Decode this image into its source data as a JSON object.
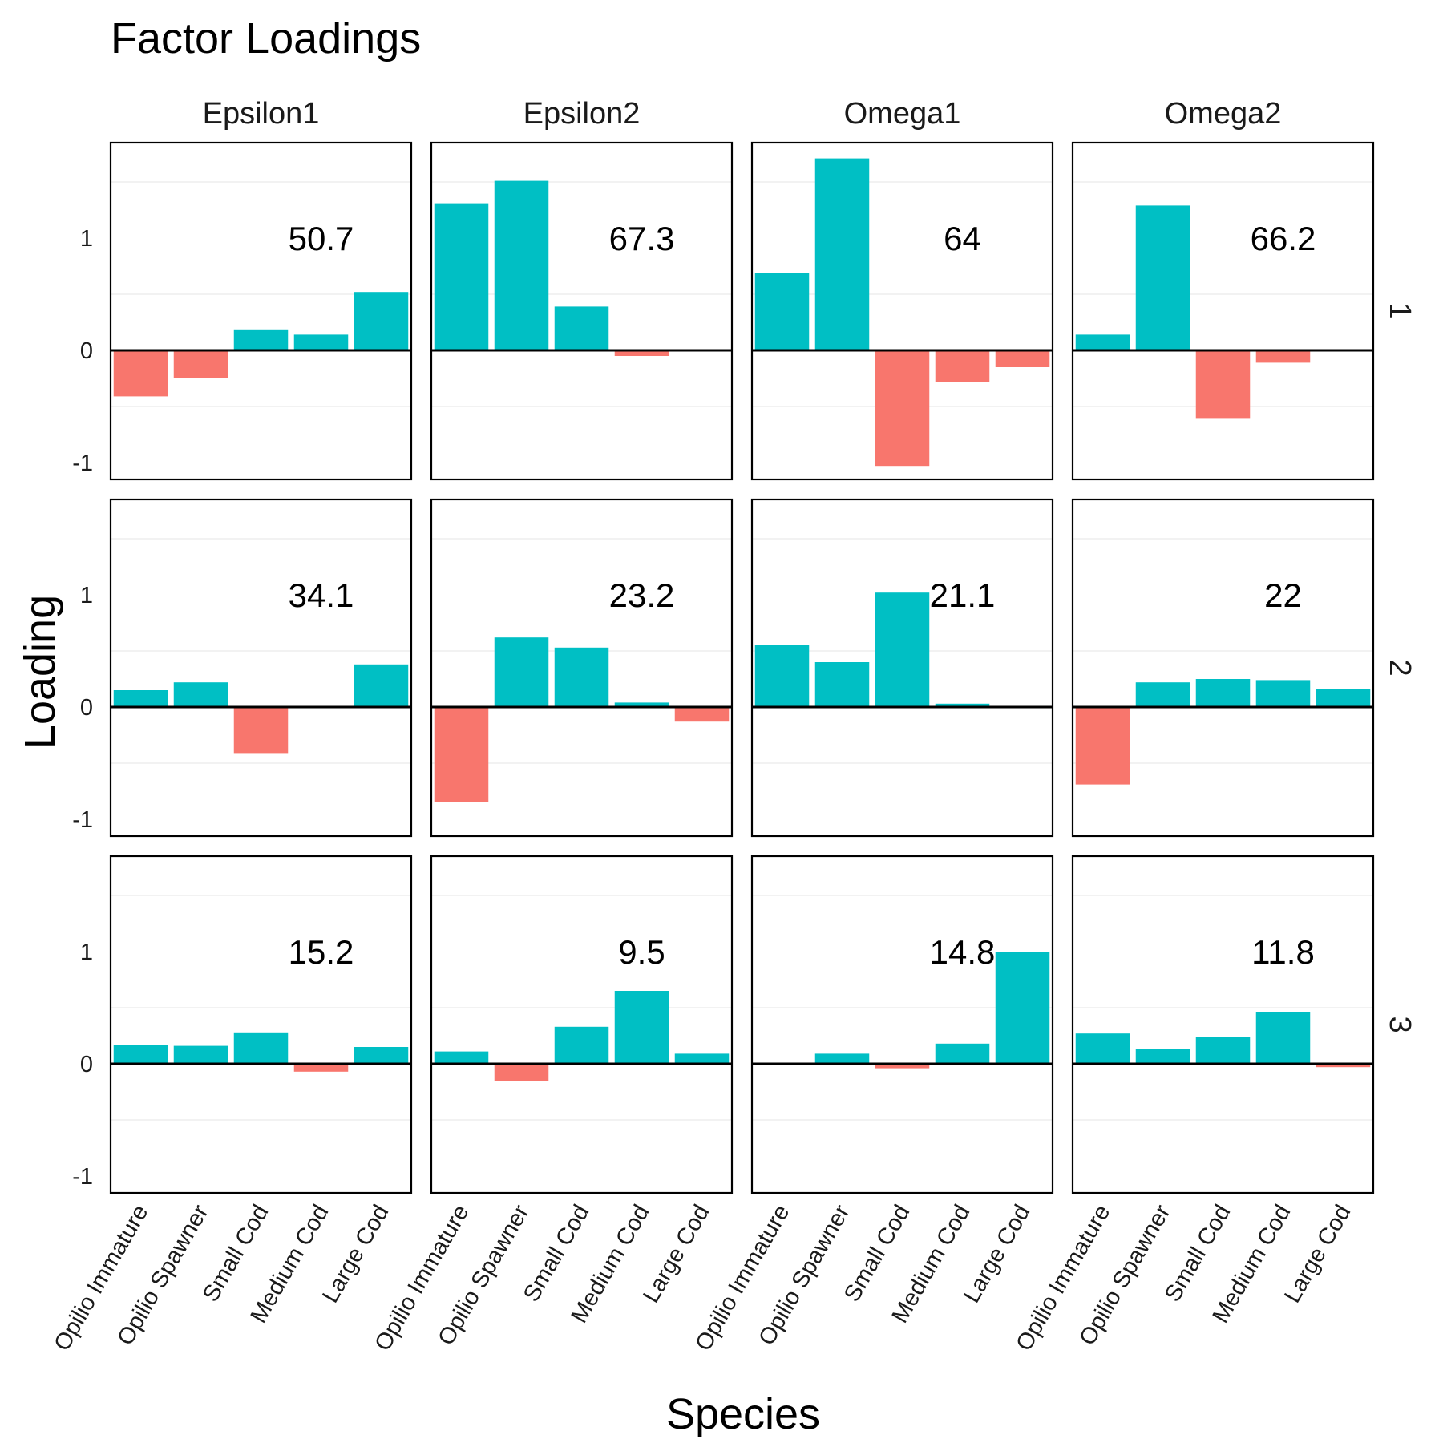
{
  "chart_data": {
    "type": "bar",
    "title": "Factor Loadings",
    "xlabel": "Species",
    "ylabel": "Loading",
    "categories": [
      "Opilio Immature",
      "Opilio Spawner",
      "Small Cod",
      "Medium Cod",
      "Large Cod"
    ],
    "columns": [
      "Epsilon1",
      "Epsilon2",
      "Omega1",
      "Omega2"
    ],
    "rows": [
      "1",
      "2",
      "3"
    ],
    "ylim": [
      -1.15,
      1.85
    ],
    "yticks": [
      -1,
      0,
      1
    ],
    "positive_color": "#00BFC4",
    "negative_color": "#F8766D",
    "panels": [
      {
        "row": "1",
        "column": "Epsilon1",
        "label": "50.7",
        "values": [
          -0.41,
          -0.25,
          0.18,
          0.14,
          0.52
        ]
      },
      {
        "row": "1",
        "column": "Epsilon2",
        "label": "67.3",
        "values": [
          1.31,
          1.51,
          0.39,
          -0.05,
          0.0
        ]
      },
      {
        "row": "1",
        "column": "Omega1",
        "label": "64",
        "values": [
          0.69,
          1.71,
          -1.03,
          -0.28,
          -0.15
        ]
      },
      {
        "row": "1",
        "column": "Omega2",
        "label": "66.2",
        "values": [
          0.14,
          1.29,
          -0.61,
          -0.11,
          0.0
        ]
      },
      {
        "row": "2",
        "column": "Epsilon1",
        "label": "34.1",
        "values": [
          0.15,
          0.22,
          -0.41,
          0.0,
          0.38
        ]
      },
      {
        "row": "2",
        "column": "Epsilon2",
        "label": "23.2",
        "values": [
          -0.85,
          0.62,
          0.53,
          0.04,
          -0.13
        ]
      },
      {
        "row": "2",
        "column": "Omega1",
        "label": "21.1",
        "values": [
          0.55,
          0.4,
          1.02,
          0.03,
          0.0
        ]
      },
      {
        "row": "2",
        "column": "Omega2",
        "label": "22",
        "values": [
          -0.69,
          0.22,
          0.25,
          0.24,
          0.16
        ]
      },
      {
        "row": "3",
        "column": "Epsilon1",
        "label": "15.2",
        "values": [
          0.17,
          0.16,
          0.28,
          -0.07,
          0.15
        ]
      },
      {
        "row": "3",
        "column": "Epsilon2",
        "label": "9.5",
        "values": [
          0.11,
          -0.15,
          0.33,
          0.65,
          0.09
        ]
      },
      {
        "row": "3",
        "column": "Omega1",
        "label": "14.8",
        "values": [
          0.0,
          0.09,
          -0.04,
          0.18,
          1.0
        ]
      },
      {
        "row": "3",
        "column": "Omega2",
        "label": "11.8",
        "values": [
          0.27,
          0.13,
          0.24,
          0.46,
          -0.03
        ]
      }
    ]
  }
}
